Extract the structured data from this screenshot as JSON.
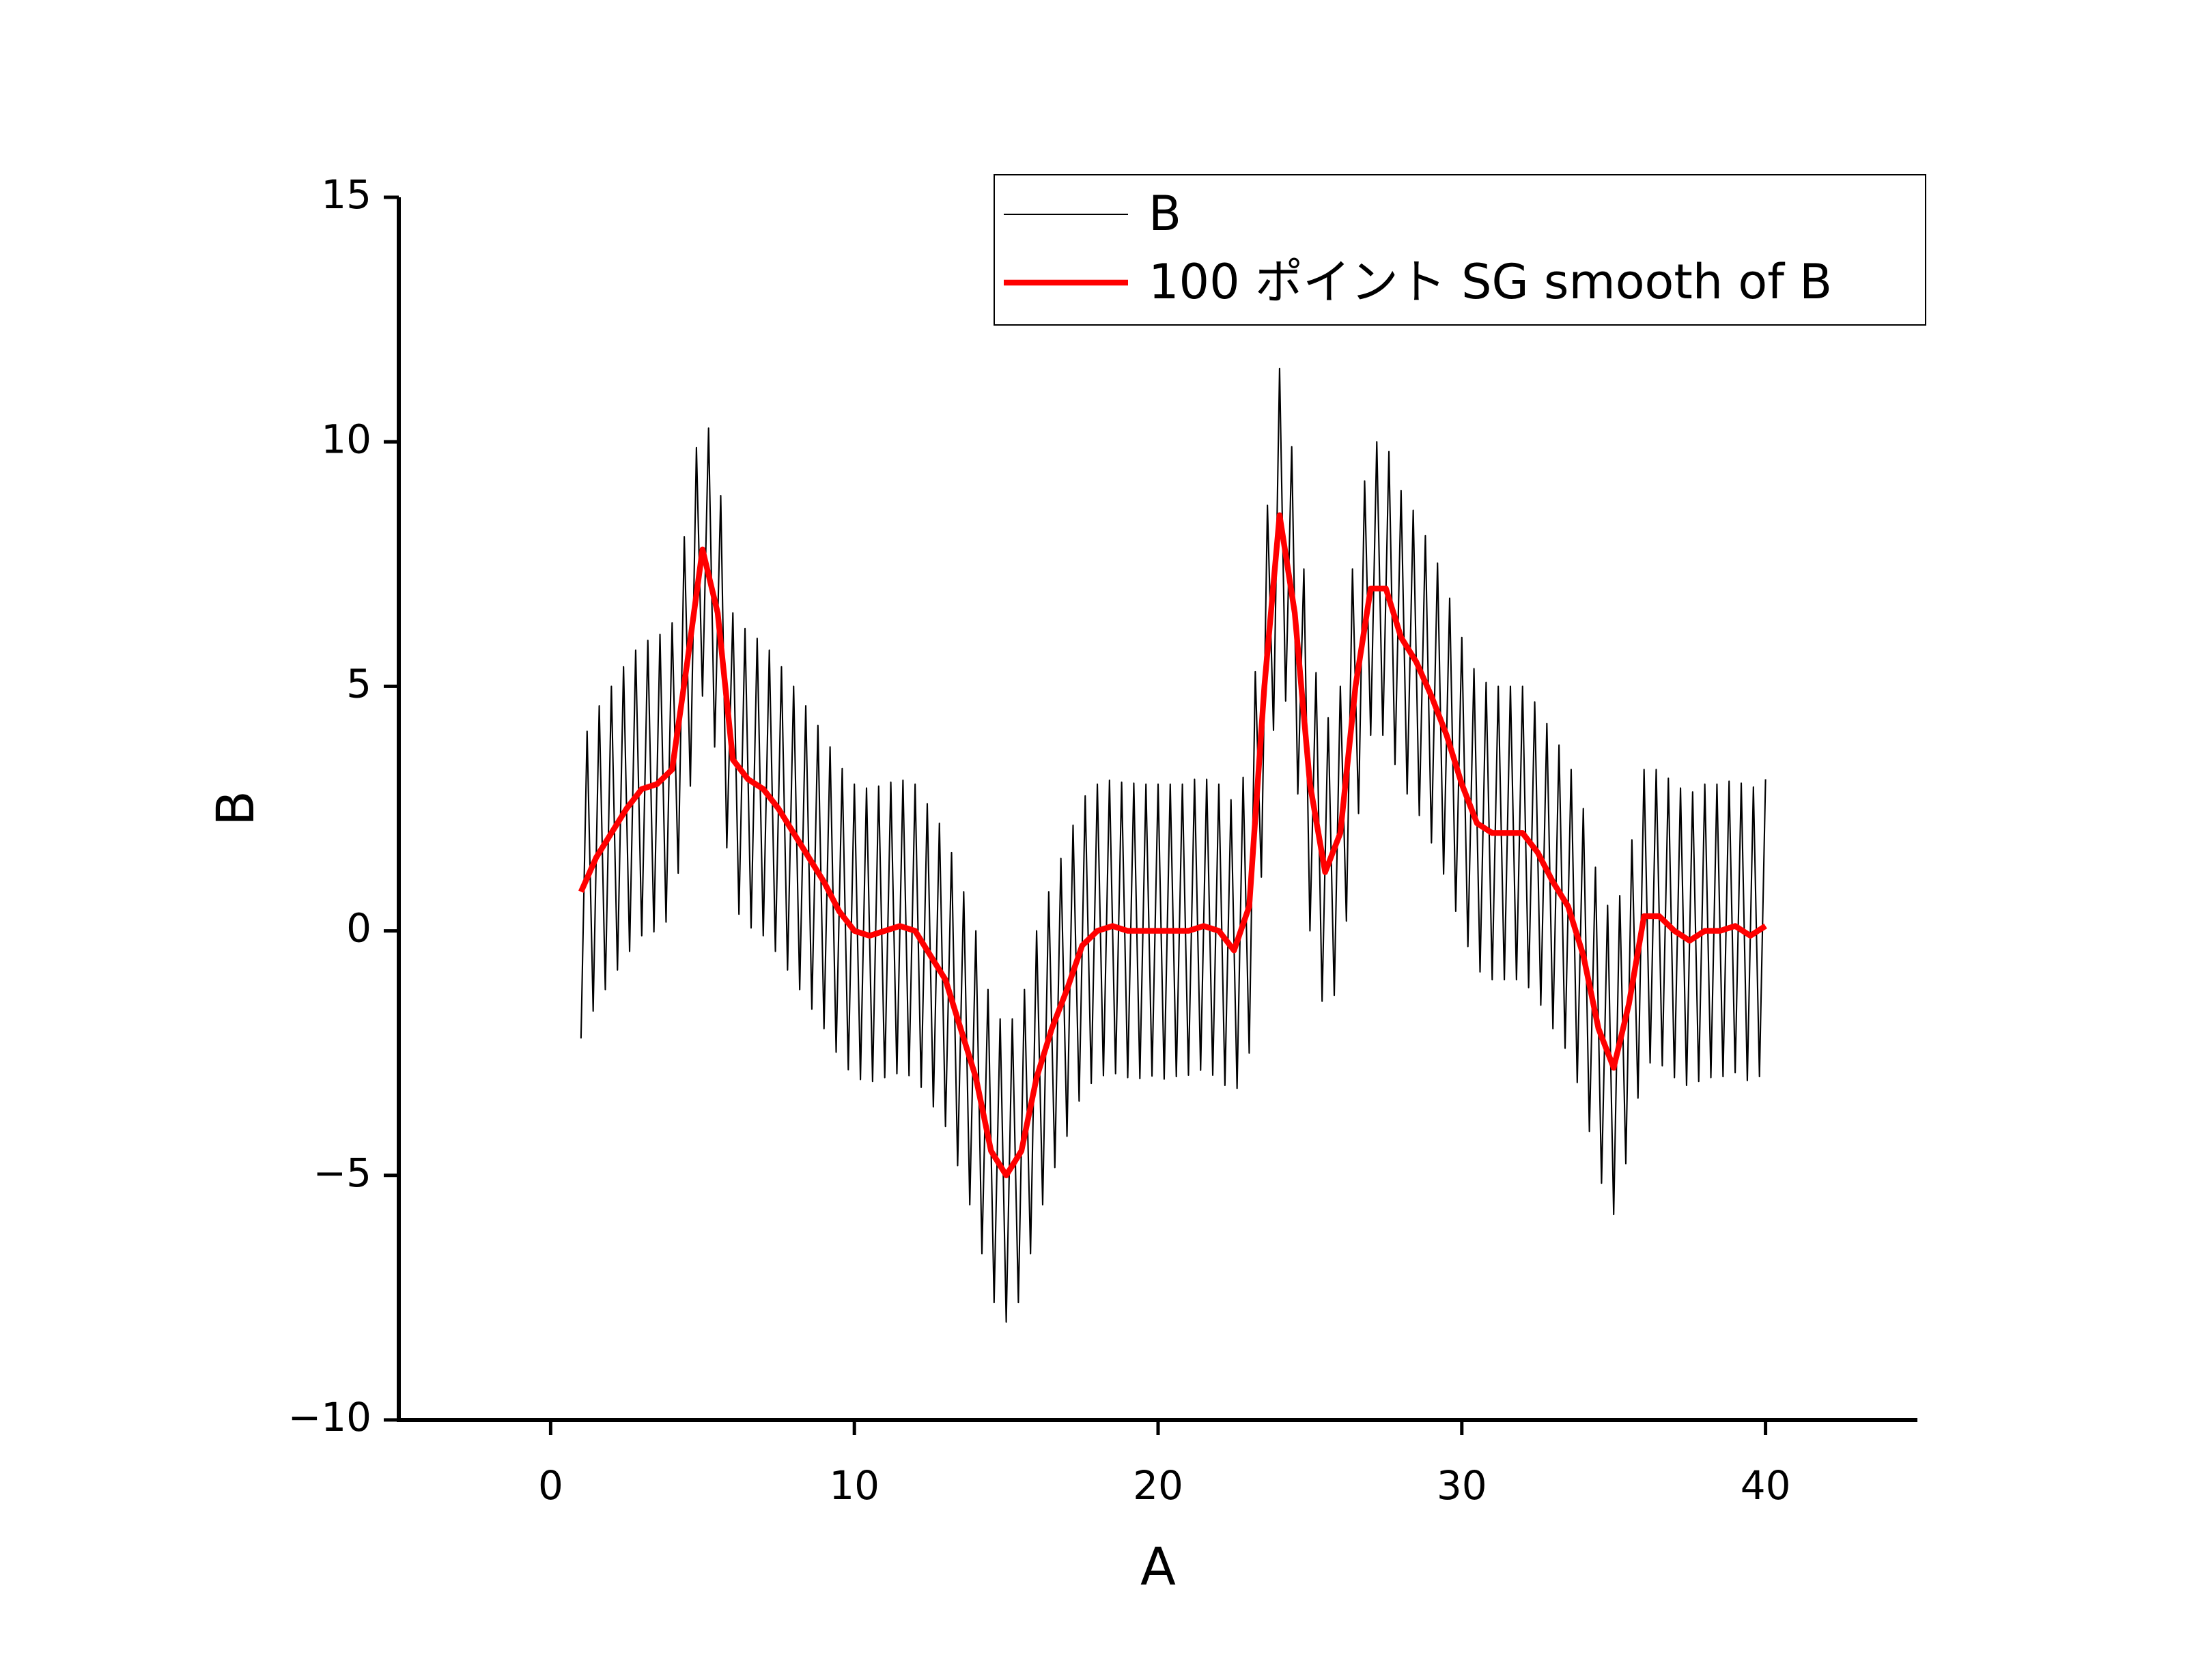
{
  "chart_data": {
    "type": "line",
    "xlabel": "A",
    "ylabel": "B",
    "xlim": [
      -5,
      45
    ],
    "xticks": [
      0,
      10,
      20,
      30,
      40
    ],
    "ylim": [
      -10,
      15
    ],
    "yticks": [
      {
        "value": -10,
        "label": "−10"
      },
      {
        "value": -5,
        "label": "−5"
      },
      0,
      5,
      10,
      15
    ],
    "legend": "top-right",
    "series": [
      {
        "name": "B",
        "color": "#000000",
        "width": 1,
        "x": [
          1.0,
          1.2,
          1.4,
          1.6,
          1.8,
          2.0,
          2.2,
          2.4,
          2.6,
          2.8,
          3.0,
          3.2,
          3.4,
          3.6,
          3.8,
          4.0,
          4.2,
          4.4,
          4.6,
          4.8,
          5.0,
          5.2,
          5.4,
          5.6,
          5.8,
          6.0,
          6.2,
          6.4,
          6.6,
          6.8,
          7.0,
          7.2,
          7.4,
          7.6,
          7.8,
          8.0,
          8.2,
          8.4,
          8.6,
          8.8,
          9.0,
          9.2,
          9.4,
          9.6,
          9.8,
          10.0,
          10.2,
          10.4,
          10.6,
          10.8,
          11.0,
          11.2,
          11.4,
          11.6,
          11.8,
          12.0,
          12.2,
          12.4,
          12.6,
          12.8,
          13.0,
          13.2,
          13.4,
          13.6,
          13.8,
          14.0,
          14.2,
          14.4,
          14.6,
          14.8,
          15.0,
          15.2,
          15.4,
          15.6,
          15.8,
          16.0,
          16.2,
          16.4,
          16.6,
          16.8,
          17.0,
          17.2,
          17.4,
          17.6,
          17.8,
          18.0,
          18.2,
          18.4,
          18.6,
          18.8,
          19.0,
          19.2,
          19.4,
          19.6,
          19.8,
          20.0,
          20.2,
          20.4,
          20.6,
          20.8,
          21.0,
          21.2,
          21.4,
          21.6,
          21.8,
          22.0,
          22.2,
          22.4,
          22.6,
          22.8,
          23.0,
          23.2,
          23.4,
          23.6,
          23.8,
          24.0,
          24.2,
          24.4,
          24.6,
          24.8,
          25.0,
          25.2,
          25.4,
          25.6,
          25.8,
          26.0,
          26.2,
          26.4,
          26.6,
          26.8,
          27.0,
          27.2,
          27.4,
          27.6,
          27.8,
          28.0,
          28.2,
          28.4,
          28.6,
          28.8,
          29.0,
          29.2,
          29.4,
          29.6,
          29.8,
          30.0,
          30.2,
          30.4,
          30.6,
          30.8,
          31.0,
          31.2,
          31.4,
          31.6,
          31.8,
          32.0,
          32.2,
          32.4,
          32.6,
          32.8,
          33.0,
          33.2,
          33.4,
          33.6,
          33.8,
          34.0,
          34.2,
          34.4,
          34.6,
          34.8,
          35.0,
          35.2,
          35.4,
          35.6,
          35.8,
          36.0,
          36.2,
          36.4,
          36.6,
          36.8,
          37.0,
          37.2,
          37.4,
          37.6,
          37.8,
          38.0,
          38.2,
          38.4,
          38.6,
          38.8,
          39.0,
          39.2,
          39.4,
          39.6,
          39.8,
          40.0
        ],
        "values": [
          -2.2,
          4.08,
          -1.64,
          4.6,
          -1.2,
          5.0,
          -0.8,
          5.4,
          -0.42,
          5.74,
          -0.1,
          5.94,
          -0.02,
          6.06,
          0.18,
          6.3,
          1.18,
          8.06,
          2.96,
          9.88,
          4.8,
          10.28,
          3.76,
          8.9,
          1.7,
          6.5,
          0.34,
          6.18,
          0.06,
          5.98,
          -0.1,
          5.74,
          -0.42,
          5.4,
          -0.8,
          5.0,
          -1.2,
          4.6,
          -1.6,
          4.2,
          -2.0,
          3.76,
          -2.48,
          3.32,
          -2.84,
          3.0,
          -3.04,
          2.92,
          -3.08,
          2.96,
          -3.0,
          3.04,
          -2.92,
          3.08,
          -2.96,
          3.0,
          -3.2,
          2.6,
          -3.6,
          2.2,
          -4.0,
          1.6,
          -4.8,
          0.8,
          -5.6,
          0,
          -6.6,
          -1.2,
          -7.6,
          -1.8,
          -8.0,
          -1.8,
          -7.6,
          -1.2,
          -6.6,
          0,
          -5.6,
          0.8,
          -4.84,
          1.48,
          -4.2,
          2.16,
          -3.48,
          2.76,
          -3.12,
          3.0,
          -2.96,
          3.08,
          -2.92,
          3.04,
          -3.0,
          3.02,
          -3.02,
          3.0,
          -2.97,
          3.0,
          -3.03,
          3.0,
          -2.98,
          3.0,
          -2.95,
          3.1,
          -2.85,
          3.1,
          -2.95,
          3.0,
          -3.16,
          2.68,
          -3.22,
          3.14,
          -2.5,
          5.3,
          1.1,
          8.7,
          4.1,
          11.5,
          4.7,
          9.9,
          2.8,
          7.4,
          0,
          5.28,
          -1.44,
          4.36,
          -1.32,
          5.0,
          0.2,
          7.4,
          2.4,
          9.2,
          4.0,
          10.0,
          4.0,
          9.8,
          3.4,
          9.0,
          2.8,
          8.6,
          2.36,
          8.08,
          1.8,
          7.52,
          1.16,
          6.8,
          0.4,
          6.0,
          -0.32,
          5.36,
          -0.84,
          5.08,
          -1.0,
          5.0,
          -1.0,
          5.0,
          -1.0,
          5.0,
          -1.16,
          4.68,
          -1.52,
          4.24,
          -2.0,
          3.8,
          -2.4,
          3.3,
          -3.1,
          2.5,
          -4.1,
          1.3,
          -5.16,
          0.52,
          -5.8,
          0.72,
          -4.76,
          1.86,
          -3.42,
          3.3,
          -2.7,
          3.3,
          -2.76,
          3.12,
          -3.0,
          2.92,
          -3.16,
          2.84,
          -3.08,
          3.0,
          -3.0,
          3.0,
          -2.98,
          3.06,
          -2.9,
          3.02,
          -3.06,
          2.94,
          -2.98,
          3.1
        ]
      },
      {
        "name": "100 ポイント SG smooth of B",
        "color": "#ff0000",
        "width": 4,
        "x": [
          1.0,
          1.5,
          2.0,
          2.5,
          3.0,
          3.5,
          4.0,
          4.5,
          5.0,
          5.5,
          6.0,
          6.5,
          7.0,
          7.5,
          8.0,
          8.5,
          9.0,
          9.5,
          10.0,
          10.5,
          11.0,
          11.5,
          12.0,
          12.5,
          13.0,
          13.5,
          14.0,
          14.5,
          15.0,
          15.5,
          16.0,
          16.5,
          17.0,
          17.5,
          18.0,
          18.5,
          19.0,
          19.5,
          20.0,
          20.5,
          21.0,
          21.5,
          22.0,
          22.5,
          23.0,
          23.5,
          24.0,
          24.5,
          25.0,
          25.5,
          26.0,
          26.5,
          27.0,
          27.5,
          28.0,
          28.5,
          29.0,
          29.5,
          30.0,
          30.5,
          31.0,
          31.5,
          32.0,
          32.5,
          33.0,
          33.5,
          34.0,
          34.5,
          35.0,
          35.5,
          36.0,
          36.5,
          37.0,
          37.5,
          38.0,
          38.5,
          39.0,
          39.5,
          40.0
        ],
        "values": [
          0.8,
          1.5,
          2.0,
          2.5,
          2.9,
          3.0,
          3.3,
          5.5,
          7.8,
          6.5,
          3.5,
          3.1,
          2.9,
          2.5,
          2.0,
          1.5,
          1.0,
          0.4,
          0.0,
          -0.1,
          0.0,
          0.1,
          0.0,
          -0.5,
          -1.0,
          -2.0,
          -3.0,
          -4.5,
          -5.0,
          -4.5,
          -3.0,
          -2.0,
          -1.2,
          -0.3,
          0.0,
          0.1,
          0.0,
          0.0,
          0.0,
          0.0,
          0.0,
          0.1,
          0.0,
          -0.4,
          0.5,
          5.0,
          8.5,
          6.5,
          3.0,
          1.2,
          2.0,
          5.0,
          7.0,
          7.0,
          6.0,
          5.5,
          4.8,
          4.0,
          3.0,
          2.2,
          2.0,
          2.0,
          2.0,
          1.6,
          1.0,
          0.5,
          -0.5,
          -2.0,
          -2.8,
          -1.5,
          0.3,
          0.3,
          0.0,
          -0.2,
          0.0,
          0.0,
          0.1,
          -0.1,
          0.1
        ]
      }
    ]
  }
}
